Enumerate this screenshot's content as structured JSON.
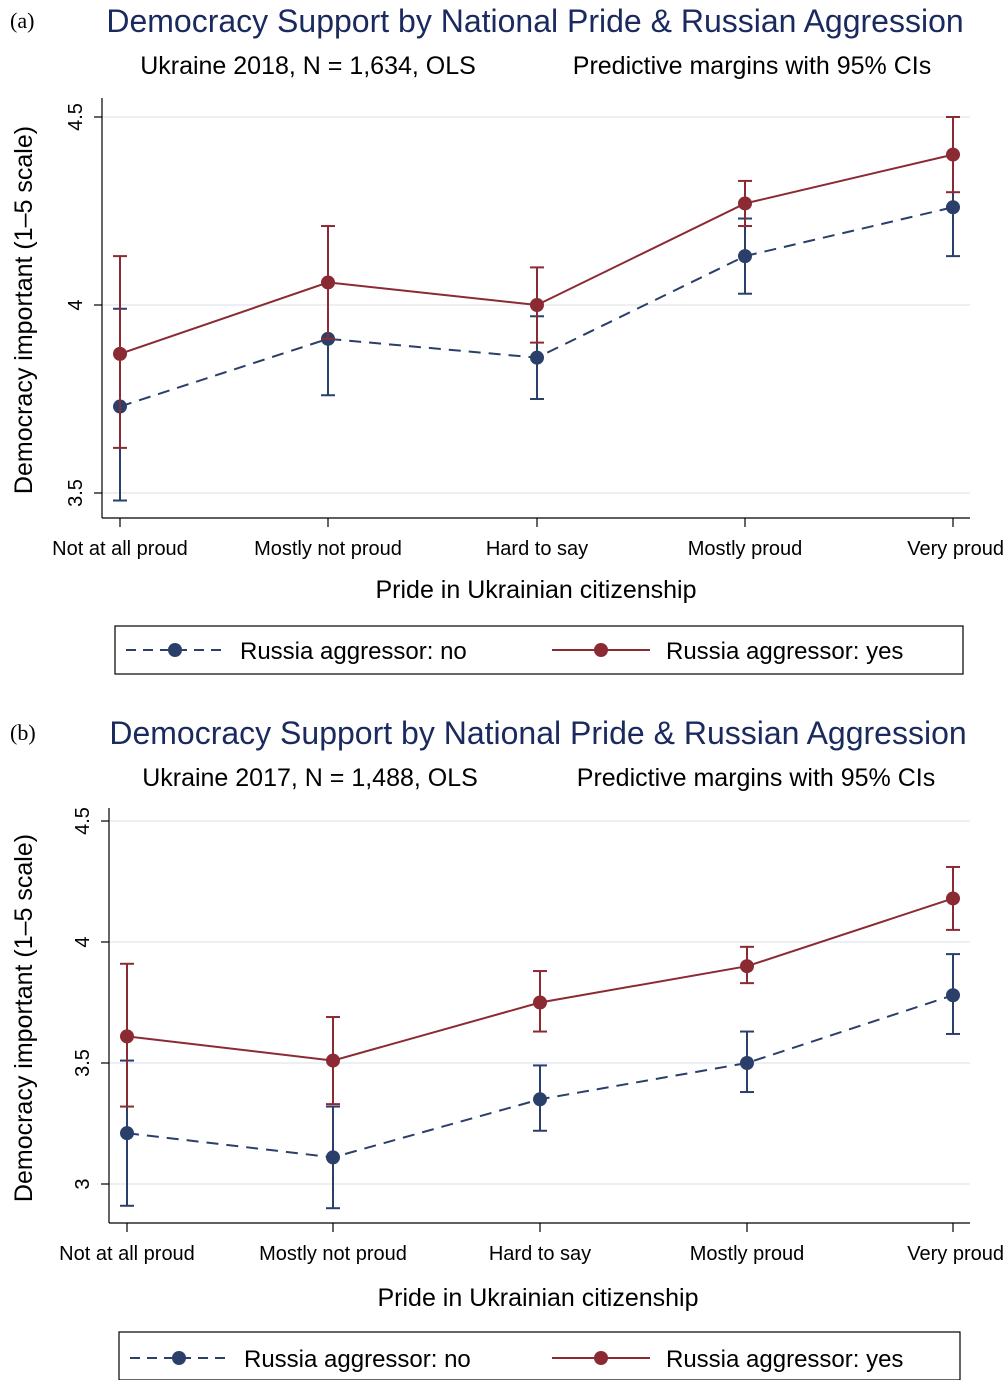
{
  "colors": {
    "no": "#2b3f6b",
    "yes": "#8b2a33",
    "title": "#1a2a5e",
    "grid": "#e6ebf2"
  },
  "chart_data": [
    {
      "type": "line",
      "panel_label": "(a)",
      "title": "Democracy Support by National Pride & Russian Aggression",
      "subtitle_left": "Ukraine 2018, N = 1,634, OLS",
      "subtitle_right": "Predictive margins with 95% CIs",
      "xlabel": "Pride in Ukrainian citizenship",
      "ylabel": "Democracy important (1–5 scale)",
      "categories": [
        "Not at all proud",
        "Mostly not proud",
        "Hard to say",
        "Mostly proud",
        "Very proud"
      ],
      "yticks": [
        "3.5",
        "4",
        "4.5"
      ],
      "ylim": [
        3.5,
        4.5
      ],
      "grid": true,
      "legend_position": "bottom",
      "series": [
        {
          "name": "Russia aggressor: no",
          "line": "dashed",
          "values": [
            3.73,
            3.91,
            3.86,
            4.13,
            4.26
          ],
          "ci": [
            [
              3.48,
              3.99
            ],
            [
              3.76,
              4.06
            ],
            [
              3.75,
              3.97
            ],
            [
              4.03,
              4.23
            ],
            [
              4.13,
              4.4
            ]
          ]
        },
        {
          "name": "Russia aggressor: yes",
          "line": "solid",
          "values": [
            3.87,
            4.06,
            4.0,
            4.27,
            4.4
          ],
          "ci": [
            [
              3.62,
              4.13
            ],
            [
              3.91,
              4.21
            ],
            [
              3.9,
              4.1
            ],
            [
              4.21,
              4.33
            ],
            [
              4.3,
              4.5
            ]
          ]
        }
      ]
    },
    {
      "type": "line",
      "panel_label": "(b)",
      "title": "Democracy Support by National Pride & Russian Aggression",
      "subtitle_left": "Ukraine 2017, N = 1,488, OLS",
      "subtitle_right": "Predictive margins with 95% CIs",
      "xlabel": "Pride in Ukrainian citizenship",
      "ylabel": "Democracy important (1–5 scale)",
      "categories": [
        "Not at all proud",
        "Mostly not proud",
        "Hard to say",
        "Mostly proud",
        "Very proud"
      ],
      "yticks": [
        "3",
        "3.5",
        "4",
        "4.5"
      ],
      "ylim": [
        3.0,
        4.5
      ],
      "grid": true,
      "legend_position": "bottom",
      "series": [
        {
          "name": "Russia aggressor: no",
          "line": "dashed",
          "values": [
            3.21,
            3.11,
            3.35,
            3.5,
            3.78
          ],
          "ci": [
            [
              2.91,
              3.51
            ],
            [
              2.9,
              3.32
            ],
            [
              3.22,
              3.49
            ],
            [
              3.38,
              3.63
            ],
            [
              3.62,
              3.95
            ]
          ]
        },
        {
          "name": "Russia aggressor: yes",
          "line": "solid",
          "values": [
            3.61,
            3.51,
            3.75,
            3.9,
            4.18
          ],
          "ci": [
            [
              3.32,
              3.91
            ],
            [
              3.33,
              3.69
            ],
            [
              3.63,
              3.88
            ],
            [
              3.83,
              3.98
            ],
            [
              4.05,
              4.31
            ]
          ]
        }
      ]
    }
  ]
}
